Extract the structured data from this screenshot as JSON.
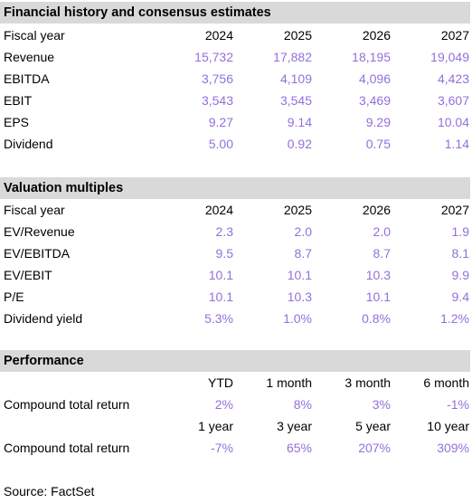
{
  "financial": {
    "title": "Financial history and consensus estimates",
    "header": {
      "label": "Fiscal year",
      "years": [
        "2024",
        "2025",
        "2026",
        "2027"
      ]
    },
    "rows": [
      {
        "label": "Revenue",
        "values": [
          "15,732",
          "17,882",
          "18,195",
          "19,049"
        ]
      },
      {
        "label": "EBITDA",
        "values": [
          "3,756",
          "4,109",
          "4,096",
          "4,423"
        ]
      },
      {
        "label": "EBIT",
        "values": [
          "3,543",
          "3,545",
          "3,469",
          "3,607"
        ]
      },
      {
        "label": "EPS",
        "values": [
          "9.27",
          "9.14",
          "9.29",
          "10.04"
        ]
      },
      {
        "label": "Dividend",
        "values": [
          "5.00",
          "0.92",
          "0.75",
          "1.14"
        ]
      }
    ]
  },
  "valuation": {
    "title": "Valuation multiples",
    "header": {
      "label": "Fiscal year",
      "years": [
        "2024",
        "2025",
        "2026",
        "2027"
      ]
    },
    "rows": [
      {
        "label": "EV/Revenue",
        "values": [
          "2.3",
          "2.0",
          "2.0",
          "1.9"
        ]
      },
      {
        "label": "EV/EBITDA",
        "values": [
          "9.5",
          "8.7",
          "8.7",
          "8.1"
        ]
      },
      {
        "label": "EV/EBIT",
        "values": [
          "10.1",
          "10.1",
          "10.3",
          "9.9"
        ]
      },
      {
        "label": "P/E",
        "values": [
          "10.1",
          "10.3",
          "10.1",
          "9.4"
        ]
      },
      {
        "label": "Dividend yield",
        "values": [
          "5.3%",
          "1.0%",
          "0.8%",
          "1.2%"
        ]
      }
    ]
  },
  "performance": {
    "title": "Performance",
    "header1": [
      "YTD",
      "1 month",
      "3 month",
      "6 month"
    ],
    "row1": {
      "label": "Compound total return",
      "values": [
        "2%",
        "8%",
        "3%",
        "-1%"
      ]
    },
    "header2": [
      "1 year",
      "3 year",
      "5 year",
      "10 year"
    ],
    "row2": {
      "label": "Compound total return",
      "values": [
        "-7%",
        "65%",
        "207%",
        "309%"
      ]
    }
  },
  "source": "Source: FactSet",
  "colors": {
    "value": "#9370db",
    "header_bg": "#d9d9d9"
  }
}
